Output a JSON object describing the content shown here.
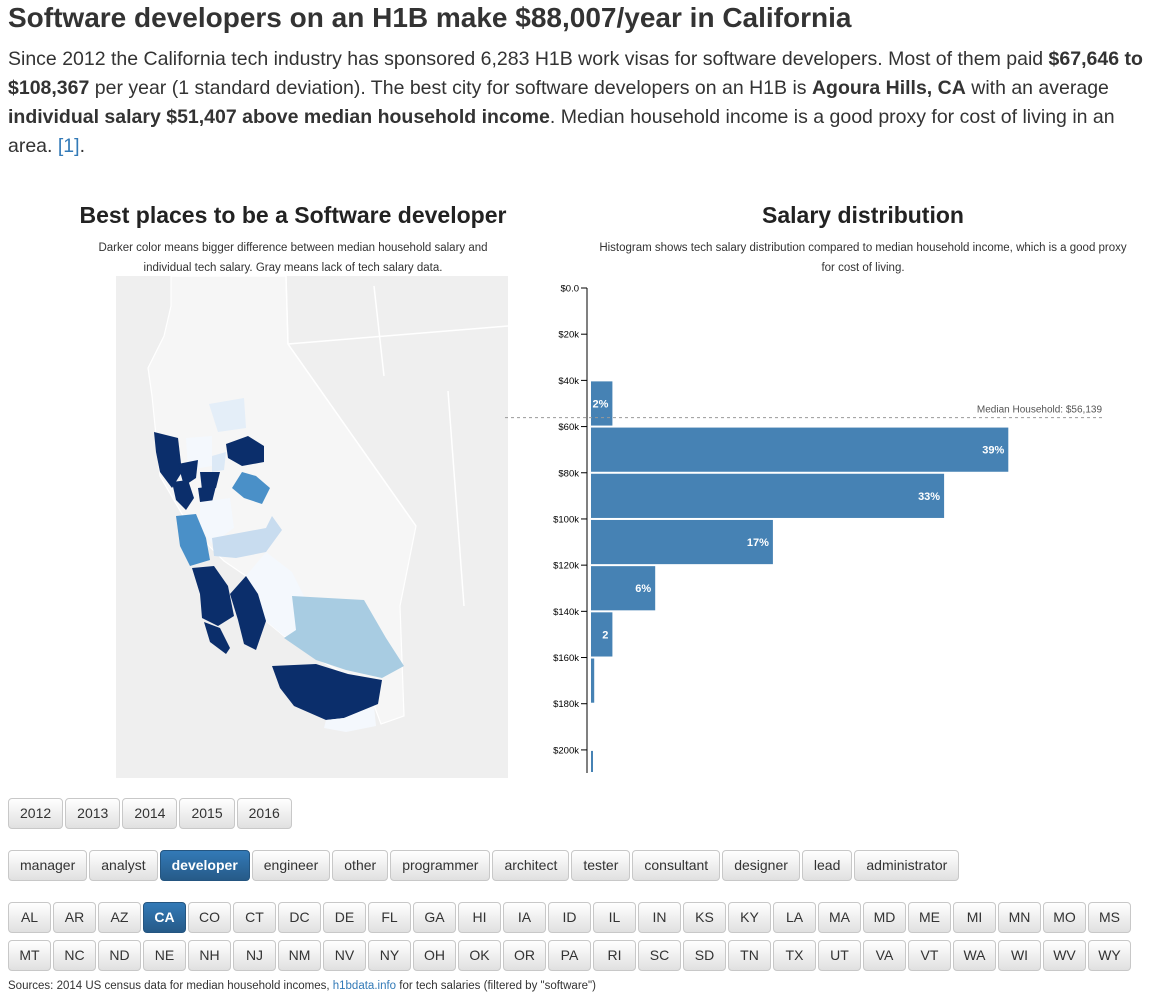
{
  "headline": "Software developers on an H1B make $88,007/year in California",
  "intro": {
    "p1": "Since 2012 the California tech industry has sponsored 6,283 H1B work visas for software developers. Most of them paid ",
    "b1": "$67,646 to $108,367",
    "p2": " per year (1 standard deviation). The best city for software developers on an H1B is ",
    "b2": "Agoura Hills, CA",
    "p3": " with an average ",
    "b3": "individual salary $51,407 above median household income",
    "p4": ". Median household income is a good proxy for cost of living in an area. ",
    "ref": "[1]",
    "p5": "."
  },
  "map": {
    "title": "Best places to be a Software developer",
    "subtitle": "Darker color means bigger difference between median household salary and individual tech salary. Gray means lack of tech salary data."
  },
  "histogram": {
    "title": "Salary distribution",
    "subtitle": "Histogram shows tech salary distribution compared to median household income, which is a good proxy for cost of living.",
    "median_label": "Median Household: $56,139"
  },
  "chart_data": {
    "type": "bar",
    "orientation": "horizontal",
    "title": "Salary distribution",
    "categories": [
      "$0.0",
      "$20k",
      "$40k",
      "$60k",
      "$80k",
      "$100k",
      "$120k",
      "$140k",
      "$160k",
      "$180k",
      "$200k"
    ],
    "bins": [
      {
        "from": 40000,
        "to": 60000,
        "value": 2,
        "label": "2%"
      },
      {
        "from": 60000,
        "to": 80000,
        "value": 39,
        "label": "39%"
      },
      {
        "from": 80000,
        "to": 100000,
        "value": 33,
        "label": "33%"
      },
      {
        "from": 100000,
        "to": 120000,
        "value": 17,
        "label": "17%"
      },
      {
        "from": 120000,
        "to": 140000,
        "value": 6,
        "label": "6%"
      },
      {
        "from": 140000,
        "to": 160000,
        "value": 2,
        "label": "2"
      },
      {
        "from": 160000,
        "to": 180000,
        "value": 0.3,
        "label": ""
      },
      {
        "from": 200000,
        "to": 210000,
        "value": 0.15,
        "label": ""
      }
    ],
    "ylim": [
      0,
      210000
    ],
    "median_household": 56139,
    "bar_color": "#4682b4"
  },
  "years": [
    "2012",
    "2013",
    "2014",
    "2015",
    "2016"
  ],
  "roles": [
    "manager",
    "analyst",
    "developer",
    "engineer",
    "other",
    "programmer",
    "architect",
    "tester",
    "consultant",
    "designer",
    "lead",
    "administrator"
  ],
  "active_role": "developer",
  "states_row1": [
    "AL",
    "AR",
    "AZ",
    "CA",
    "CO",
    "CT",
    "DC",
    "DE",
    "FL",
    "GA",
    "HI",
    "IA",
    "ID",
    "IL",
    "IN",
    "KS",
    "KY",
    "LA",
    "MA",
    "MD",
    "ME",
    "MI",
    "MN",
    "MO",
    "MS"
  ],
  "states_row2": [
    "MT",
    "NC",
    "ND",
    "NE",
    "NH",
    "NJ",
    "NM",
    "NV",
    "NY",
    "OH",
    "OK",
    "OR",
    "PA",
    "RI",
    "SC",
    "SD",
    "TN",
    "TX",
    "UT",
    "VA",
    "VT",
    "WA",
    "WI",
    "WV",
    "WY"
  ],
  "active_state": "CA",
  "sources": {
    "prefix": "Sources: 2014 US census data for median household incomes, ",
    "link": "h1bdata.info",
    "suffix": " for tech salaries (filtered by \"software\")"
  },
  "colors": {
    "accent": "#337ab7",
    "bar": "#4682b4",
    "map_darkest": "#0b2e6b",
    "map_mid": "#4a90c8",
    "map_light": "#a8cce2",
    "map_lightest": "#f2f7fd",
    "map_gray": "#efefef"
  }
}
